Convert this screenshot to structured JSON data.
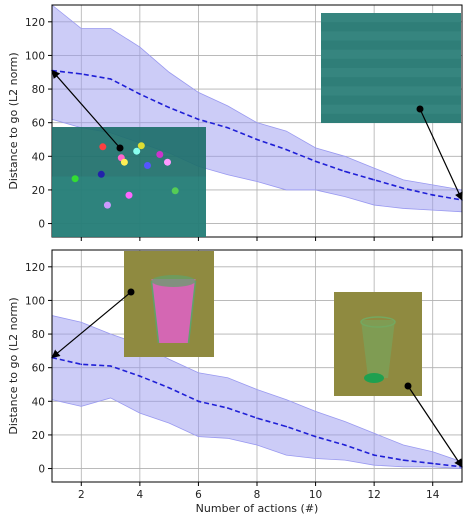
{
  "chart_data": [
    {
      "type": "line",
      "ylabel": "Distance to go (L2 norm)",
      "xlim": [
        1,
        15
      ],
      "ylim": [
        -8,
        130
      ],
      "xticks": [
        2,
        4,
        6,
        8,
        10,
        12,
        14
      ],
      "yticks": [
        0,
        20,
        40,
        60,
        80,
        100,
        120
      ],
      "grid": true,
      "x": [
        1,
        2,
        3,
        4,
        5,
        6,
        7,
        8,
        9,
        10,
        11,
        12,
        13,
        14,
        15
      ],
      "series": [
        {
          "values": [
            91,
            89,
            86,
            77,
            69,
            62,
            57,
            50,
            44,
            37,
            31,
            26,
            21,
            17,
            14
          ],
          "lower": [
            62,
            57,
            54,
            48,
            42,
            34,
            29,
            25,
            20,
            20,
            16,
            11,
            9,
            8,
            7
          ],
          "upper": [
            130,
            116,
            116,
            105,
            90,
            78,
            70,
            60,
            55,
            45,
            40,
            33,
            26,
            23,
            20
          ]
        }
      ],
      "colors": {
        "line": "#1f1fd6",
        "band": "#9999f0"
      },
      "insets": [
        {
          "description": "cluttered scene with many colored objects",
          "position": "lower-left",
          "palette": [
            "#1d6f6a",
            "#2e8b84",
            "#e8e8ff"
          ]
        },
        {
          "description": "empty scene",
          "position": "upper-right",
          "palette": [
            "#2f7e78",
            "#4a9a92",
            "#3a8c85"
          ]
        }
      ]
    },
    {
      "type": "line",
      "xlabel": "Number of actions (#)",
      "ylabel": "Distance to go (L2 norm)",
      "xlim": [
        1,
        15
      ],
      "ylim": [
        -8,
        130
      ],
      "xticks": [
        2,
        4,
        6,
        8,
        10,
        12,
        14
      ],
      "yticks": [
        0,
        20,
        40,
        60,
        80,
        100,
        120
      ],
      "grid": true,
      "x": [
        1,
        2,
        3,
        4,
        5,
        6,
        7,
        8,
        9,
        10,
        11,
        12,
        13,
        14,
        15
      ],
      "series": [
        {
          "values": [
            66,
            62,
            61,
            55,
            48,
            40,
            36,
            30,
            25,
            19,
            14,
            8,
            5,
            3,
            1
          ],
          "lower": [
            41,
            37,
            42,
            33,
            27,
            19,
            18,
            14,
            8,
            6,
            5,
            2,
            1,
            1,
            0
          ],
          "upper": [
            91,
            87,
            80,
            74,
            65,
            57,
            54,
            47,
            41,
            34,
            28,
            21,
            14,
            10,
            4
          ]
        }
      ],
      "colors": {
        "line": "#1f1fd6",
        "band": "#9999f0"
      },
      "insets": [
        {
          "description": "glass filled with pink balls",
          "position": "upper-left",
          "palette": [
            "#8f8a40",
            "#e060c8",
            "#5fa36a"
          ]
        },
        {
          "description": "empty glass",
          "position": "right",
          "palette": [
            "#8f8a40",
            "#74a860",
            "#1fa050"
          ]
        }
      ]
    }
  ]
}
